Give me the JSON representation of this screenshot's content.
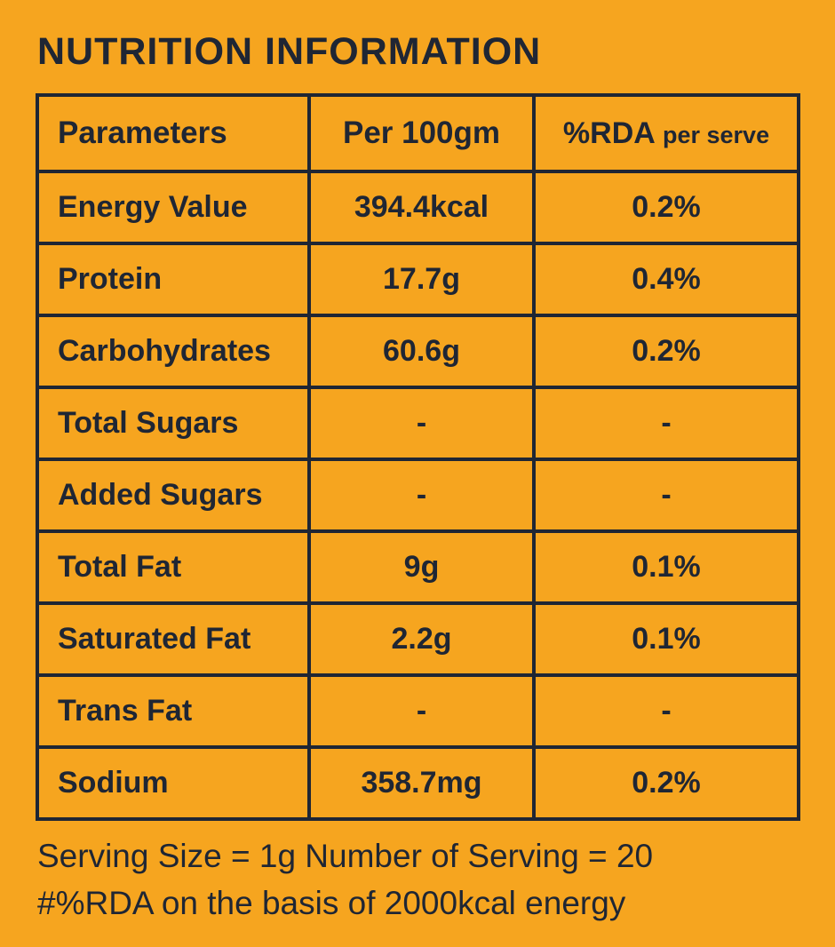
{
  "page": {
    "title": "NUTRITION INFORMATION",
    "background_color": "#F6A51F",
    "text_color": "#1F2634",
    "border_color": "#1F2634"
  },
  "table": {
    "headers": {
      "parameters": "Parameters",
      "per_100gm": "Per 100gm",
      "rda_main": "%RDA",
      "rda_sub": "per serve"
    },
    "rows": [
      {
        "parameter": "Energy Value",
        "per_100gm": "394.4kcal",
        "rda": "0.2%"
      },
      {
        "parameter": "Protein",
        "per_100gm": "17.7g",
        "rda": "0.4%"
      },
      {
        "parameter": "Carbohydrates",
        "per_100gm": "60.6g",
        "rda": "0.2%"
      },
      {
        "parameter": "Total Sugars",
        "per_100gm": "-",
        "rda": "-"
      },
      {
        "parameter": "Added Sugars",
        "per_100gm": "-",
        "rda": "-"
      },
      {
        "parameter": "Total Fat",
        "per_100gm": "9g",
        "rda": "0.1%"
      },
      {
        "parameter": "Saturated Fat",
        "per_100gm": "2.2g",
        "rda": "0.1%"
      },
      {
        "parameter": "Trans Fat",
        "per_100gm": "-",
        "rda": "-"
      },
      {
        "parameter": "Sodium",
        "per_100gm": "358.7mg",
        "rda": "0.2%"
      }
    ]
  },
  "footer": {
    "line1": "Serving Size = 1g Number of Serving = 20",
    "line2": "#%RDA on the basis of 2000kcal energy"
  }
}
